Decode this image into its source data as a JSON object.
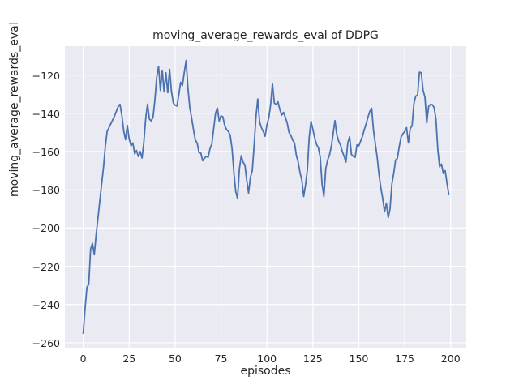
{
  "figure": {
    "title": "moving_average_rewards_eval of DDPG",
    "xlabel": "episodes",
    "ylabel": "moving_average_rewards_eval",
    "background_color": "#ffffff",
    "axes_background_color": "#eaeaf2",
    "grid_color": "#ffffff",
    "line_color": "#4c72b0",
    "text_color": "#262626"
  },
  "chart_data": {
    "type": "line",
    "title": "moving_average_rewards_eval of DDPG",
    "xlabel": "episodes",
    "ylabel": "moving_average_rewards_eval",
    "grid": true,
    "legend_position": "none",
    "x_ticks": [
      0,
      25,
      50,
      75,
      100,
      125,
      150,
      175,
      200
    ],
    "x_tick_labels": [
      "0",
      "25",
      "50",
      "75",
      "100",
      "125",
      "150",
      "175",
      "200"
    ],
    "y_ticks": [
      -120,
      -140,
      -160,
      -180,
      -200,
      -220,
      -240,
      -260
    ],
    "y_tick_labels": [
      "−120",
      "−140",
      "−160",
      "−180",
      "−200",
      "−220",
      "−240",
      "−260"
    ],
    "xlim": [
      -10.0,
      208.5
    ],
    "ylim": [
      -263.0,
      -104.9
    ],
    "series": [
      {
        "name": "moving_average_rewards_eval",
        "color": "#4c72b0",
        "x_start": 0,
        "x_step": 1,
        "values": [
          -255.0,
          -242.0,
          -231.0,
          -229.5,
          -211.0,
          -208.0,
          -214.0,
          -203.5,
          -195.0,
          -186.0,
          -177.0,
          -168.5,
          -157.5,
          -149.5,
          -147.5,
          -145.5,
          -143.5,
          -141.5,
          -139.0,
          -136.5,
          -135.3,
          -141.0,
          -149.0,
          -153.8,
          -146.3,
          -153.5,
          -157.0,
          -155.5,
          -161.2,
          -159.4,
          -162.6,
          -160.0,
          -163.4,
          -155.0,
          -142.5,
          -135.2,
          -143.0,
          -144.0,
          -142.0,
          -133.0,
          -121.0,
          -115.5,
          -128.0,
          -117.5,
          -128.8,
          -118.8,
          -129.2,
          -117.0,
          -128.5,
          -134.5,
          -135.7,
          -136.2,
          -130.5,
          -123.8,
          -125.5,
          -118.5,
          -112.4,
          -127.0,
          -137.0,
          -142.5,
          -148.5,
          -154.0,
          -155.5,
          -160.5,
          -160.8,
          -164.8,
          -163.5,
          -162.5,
          -163.0,
          -158.5,
          -156.0,
          -148.0,
          -140.0,
          -137.2,
          -144.0,
          -141.3,
          -141.8,
          -146.4,
          -148.5,
          -149.5,
          -151.5,
          -158.5,
          -171.0,
          -181.0,
          -184.6,
          -169.0,
          -162.2,
          -165.5,
          -167.0,
          -175.0,
          -181.7,
          -173.5,
          -170.0,
          -157.0,
          -142.0,
          -132.5,
          -144.5,
          -147.5,
          -149.5,
          -152.0,
          -146.0,
          -142.3,
          -135.5,
          -124.5,
          -134.5,
          -135.5,
          -134.0,
          -138.0,
          -141.0,
          -139.5,
          -142.0,
          -145.0,
          -150.0,
          -151.5,
          -154.0,
          -155.5,
          -162.0,
          -165.5,
          -171.0,
          -175.0,
          -183.5,
          -177.5,
          -169.5,
          -152.5,
          -144.2,
          -148.5,
          -153.0,
          -156.3,
          -158.0,
          -163.0,
          -177.0,
          -183.5,
          -169.0,
          -164.5,
          -162.0,
          -157.5,
          -151.0,
          -143.8,
          -151.0,
          -154.5,
          -156.5,
          -160.0,
          -162.5,
          -165.5,
          -155.5,
          -152.3,
          -161.5,
          -162.5,
          -163.0,
          -156.5,
          -157.0,
          -154.5,
          -152.0,
          -148.5,
          -145.5,
          -142.0,
          -139.0,
          -137.4,
          -149.0,
          -156.0,
          -163.0,
          -172.0,
          -179.0,
          -184.5,
          -191.5,
          -187.0,
          -194.5,
          -190.0,
          -177.0,
          -171.5,
          -164.5,
          -163.5,
          -157.5,
          -152.5,
          -150.7,
          -149.5,
          -147.5,
          -155.5,
          -148.0,
          -146.5,
          -135.0,
          -131.0,
          -130.5,
          -118.5,
          -118.8,
          -128.0,
          -131.5,
          -145.0,
          -136.5,
          -135.4,
          -135.5,
          -137.0,
          -143.0,
          -159.0,
          -168.0,
          -166.5,
          -171.5,
          -170.0,
          -176.5,
          -182.5
        ]
      }
    ]
  }
}
